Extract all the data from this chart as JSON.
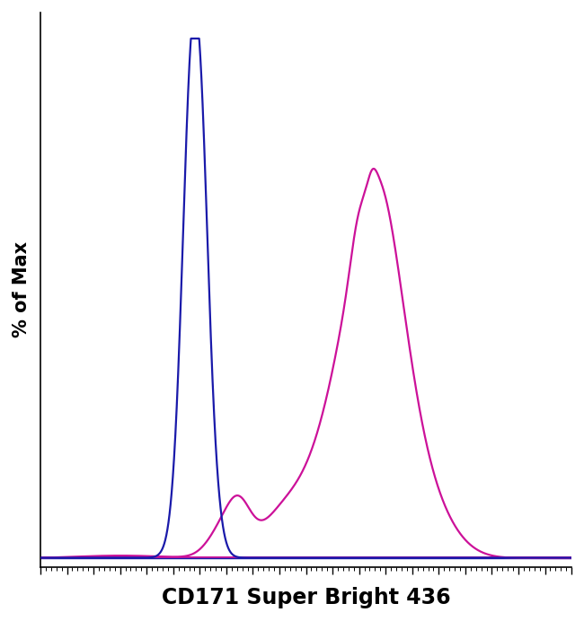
{
  "title": "",
  "xlabel": "CD171 Super Bright 436",
  "ylabel": "% of Max",
  "xlabel_fontsize": 17,
  "ylabel_fontsize": 15,
  "background_color": "#ffffff",
  "blue_color": "#1a1aaa",
  "magenta_color": "#cc1199",
  "xlim": [
    0,
    1000
  ],
  "ylim": [
    0,
    1.05
  ]
}
